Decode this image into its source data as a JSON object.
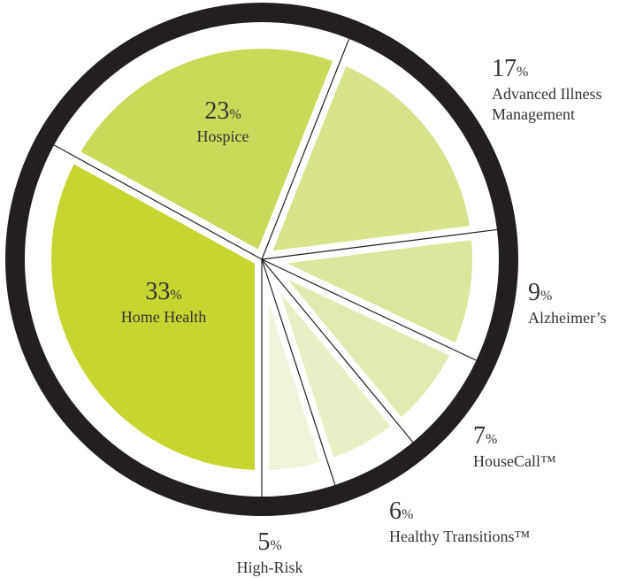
{
  "chart_data": {
    "type": "pie",
    "categories": [
      "Home Health",
      "Hospice",
      "Advanced Illness Management",
      "Alzheimer’s",
      "HouseCall™",
      "Healthy Transitions™",
      "High-Risk"
    ],
    "values": [
      33,
      23,
      17,
      9,
      7,
      6,
      5
    ],
    "unit": "%",
    "colors": [
      "#c6d52f",
      "#cbd95b",
      "#d8e38c",
      "#dde69d",
      "#e3eab1",
      "#e9efc5",
      "#f0f4db"
    ]
  }
}
